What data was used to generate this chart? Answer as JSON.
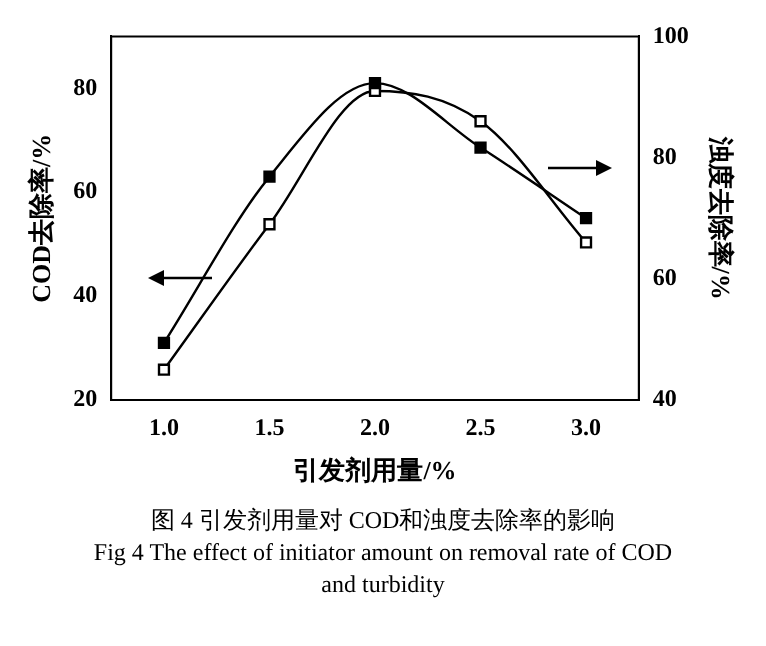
{
  "chart_data": {
    "type": "line",
    "xlabel": "引发剂用量/%",
    "ylabel": "COD去除率/%",
    "y2label": "浊度去除率/%",
    "x": [
      1.0,
      1.5,
      2.0,
      2.5,
      3.0
    ],
    "series": [
      {
        "color": "#000000",
        "values": [
          31,
          63,
          81,
          68.6,
          55
        ]
      },
      {
        "color": "#000000",
        "axis": "y2",
        "values": [
          45,
          69,
          91,
          86,
          66
        ]
      }
    ],
    "xlim": [
      0.75,
      3.25
    ],
    "xticks": [
      {
        "value": 1,
        "label": "1.0"
      },
      {
        "value": 1.5,
        "label": "1.5"
      },
      {
        "value": 2,
        "label": "2.0"
      },
      {
        "value": 2.5,
        "label": "2.5"
      },
      {
        "value": 3,
        "label": "3.0"
      }
    ],
    "ylim": [
      20,
      90
    ],
    "yticks": [
      20,
      40,
      60,
      80
    ],
    "y2lim": [
      40,
      100
    ],
    "y2ticks": [
      40,
      60,
      80,
      100
    ],
    "marker": "square",
    "grid": false,
    "legend": false,
    "annotations": [
      "图 4  引发剂用量对 COD和浊度去除率的影响",
      "Fig 4  The effect of initiator amount on removal rate of COD and turbidity"
    ]
  }
}
